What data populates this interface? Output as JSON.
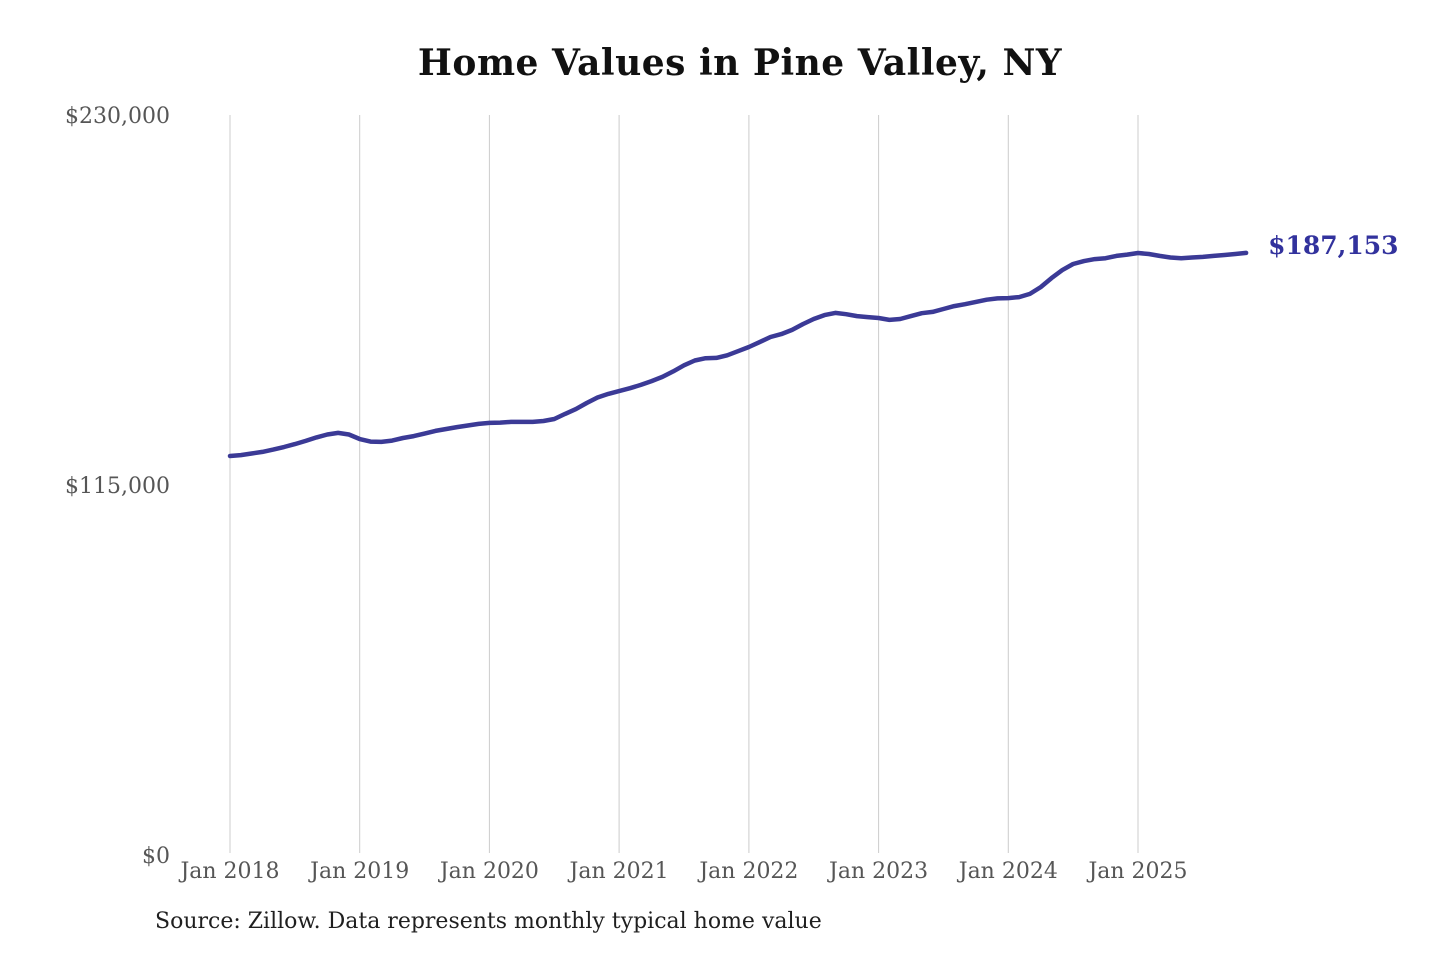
{
  "chart_data": {
    "type": "line",
    "title": "Home Values in Pine Valley, NY",
    "source_note": "Source: Zillow. Data represents monthly typical home value",
    "series_name": "Monthly typical home value",
    "x_start": "2018-01",
    "x_end": "2025-11",
    "x_tick_labels": [
      "Jan 2018",
      "Jan 2019",
      "Jan 2020",
      "Jan 2021",
      "Jan 2022",
      "Jan 2023",
      "Jan 2024",
      "Jan 2025"
    ],
    "x_tick_month_indices": [
      0,
      12,
      24,
      36,
      48,
      60,
      72,
      84
    ],
    "y_ticks": [
      {
        "value": 0,
        "label": "$0"
      },
      {
        "value": 115000,
        "label": "$115,000"
      },
      {
        "value": 230000,
        "label": "$230,000"
      }
    ],
    "ylim": [
      0,
      230000
    ],
    "grid": "vertical-only",
    "legend": "none",
    "end_label": "$187,153",
    "end_value": 187153,
    "line_color": "#3b3a96",
    "end_label_color": "#32329d",
    "gridline_color": "#cccccc",
    "values": [
      124000,
      124300,
      124800,
      125300,
      126000,
      126800,
      127700,
      128700,
      129800,
      130700,
      131200,
      130700,
      129300,
      128500,
      128400,
      128800,
      129600,
      130200,
      131000,
      131800,
      132400,
      133000,
      133500,
      134000,
      134300,
      134400,
      134600,
      134600,
      134600,
      134900,
      135500,
      137100,
      138600,
      140500,
      142200,
      143300,
      144200,
      145100,
      146100,
      147300,
      148600,
      150300,
      152200,
      153700,
      154400,
      154500,
      155300,
      156600,
      157900,
      159400,
      161000,
      161900,
      163200,
      165000,
      166600,
      167800,
      168500,
      168100,
      167500,
      167200,
      166900,
      166300,
      166600,
      167500,
      168400,
      168800,
      169700,
      170600,
      171200,
      171900,
      172600,
      173000,
      173100,
      173400,
      174400,
      176500,
      179300,
      181800,
      183700,
      184600,
      185200,
      185500,
      186200,
      186600,
      187100,
      186800,
      186200,
      185700,
      185500,
      185700,
      185900,
      186200,
      186500,
      186800,
      187153
    ]
  }
}
